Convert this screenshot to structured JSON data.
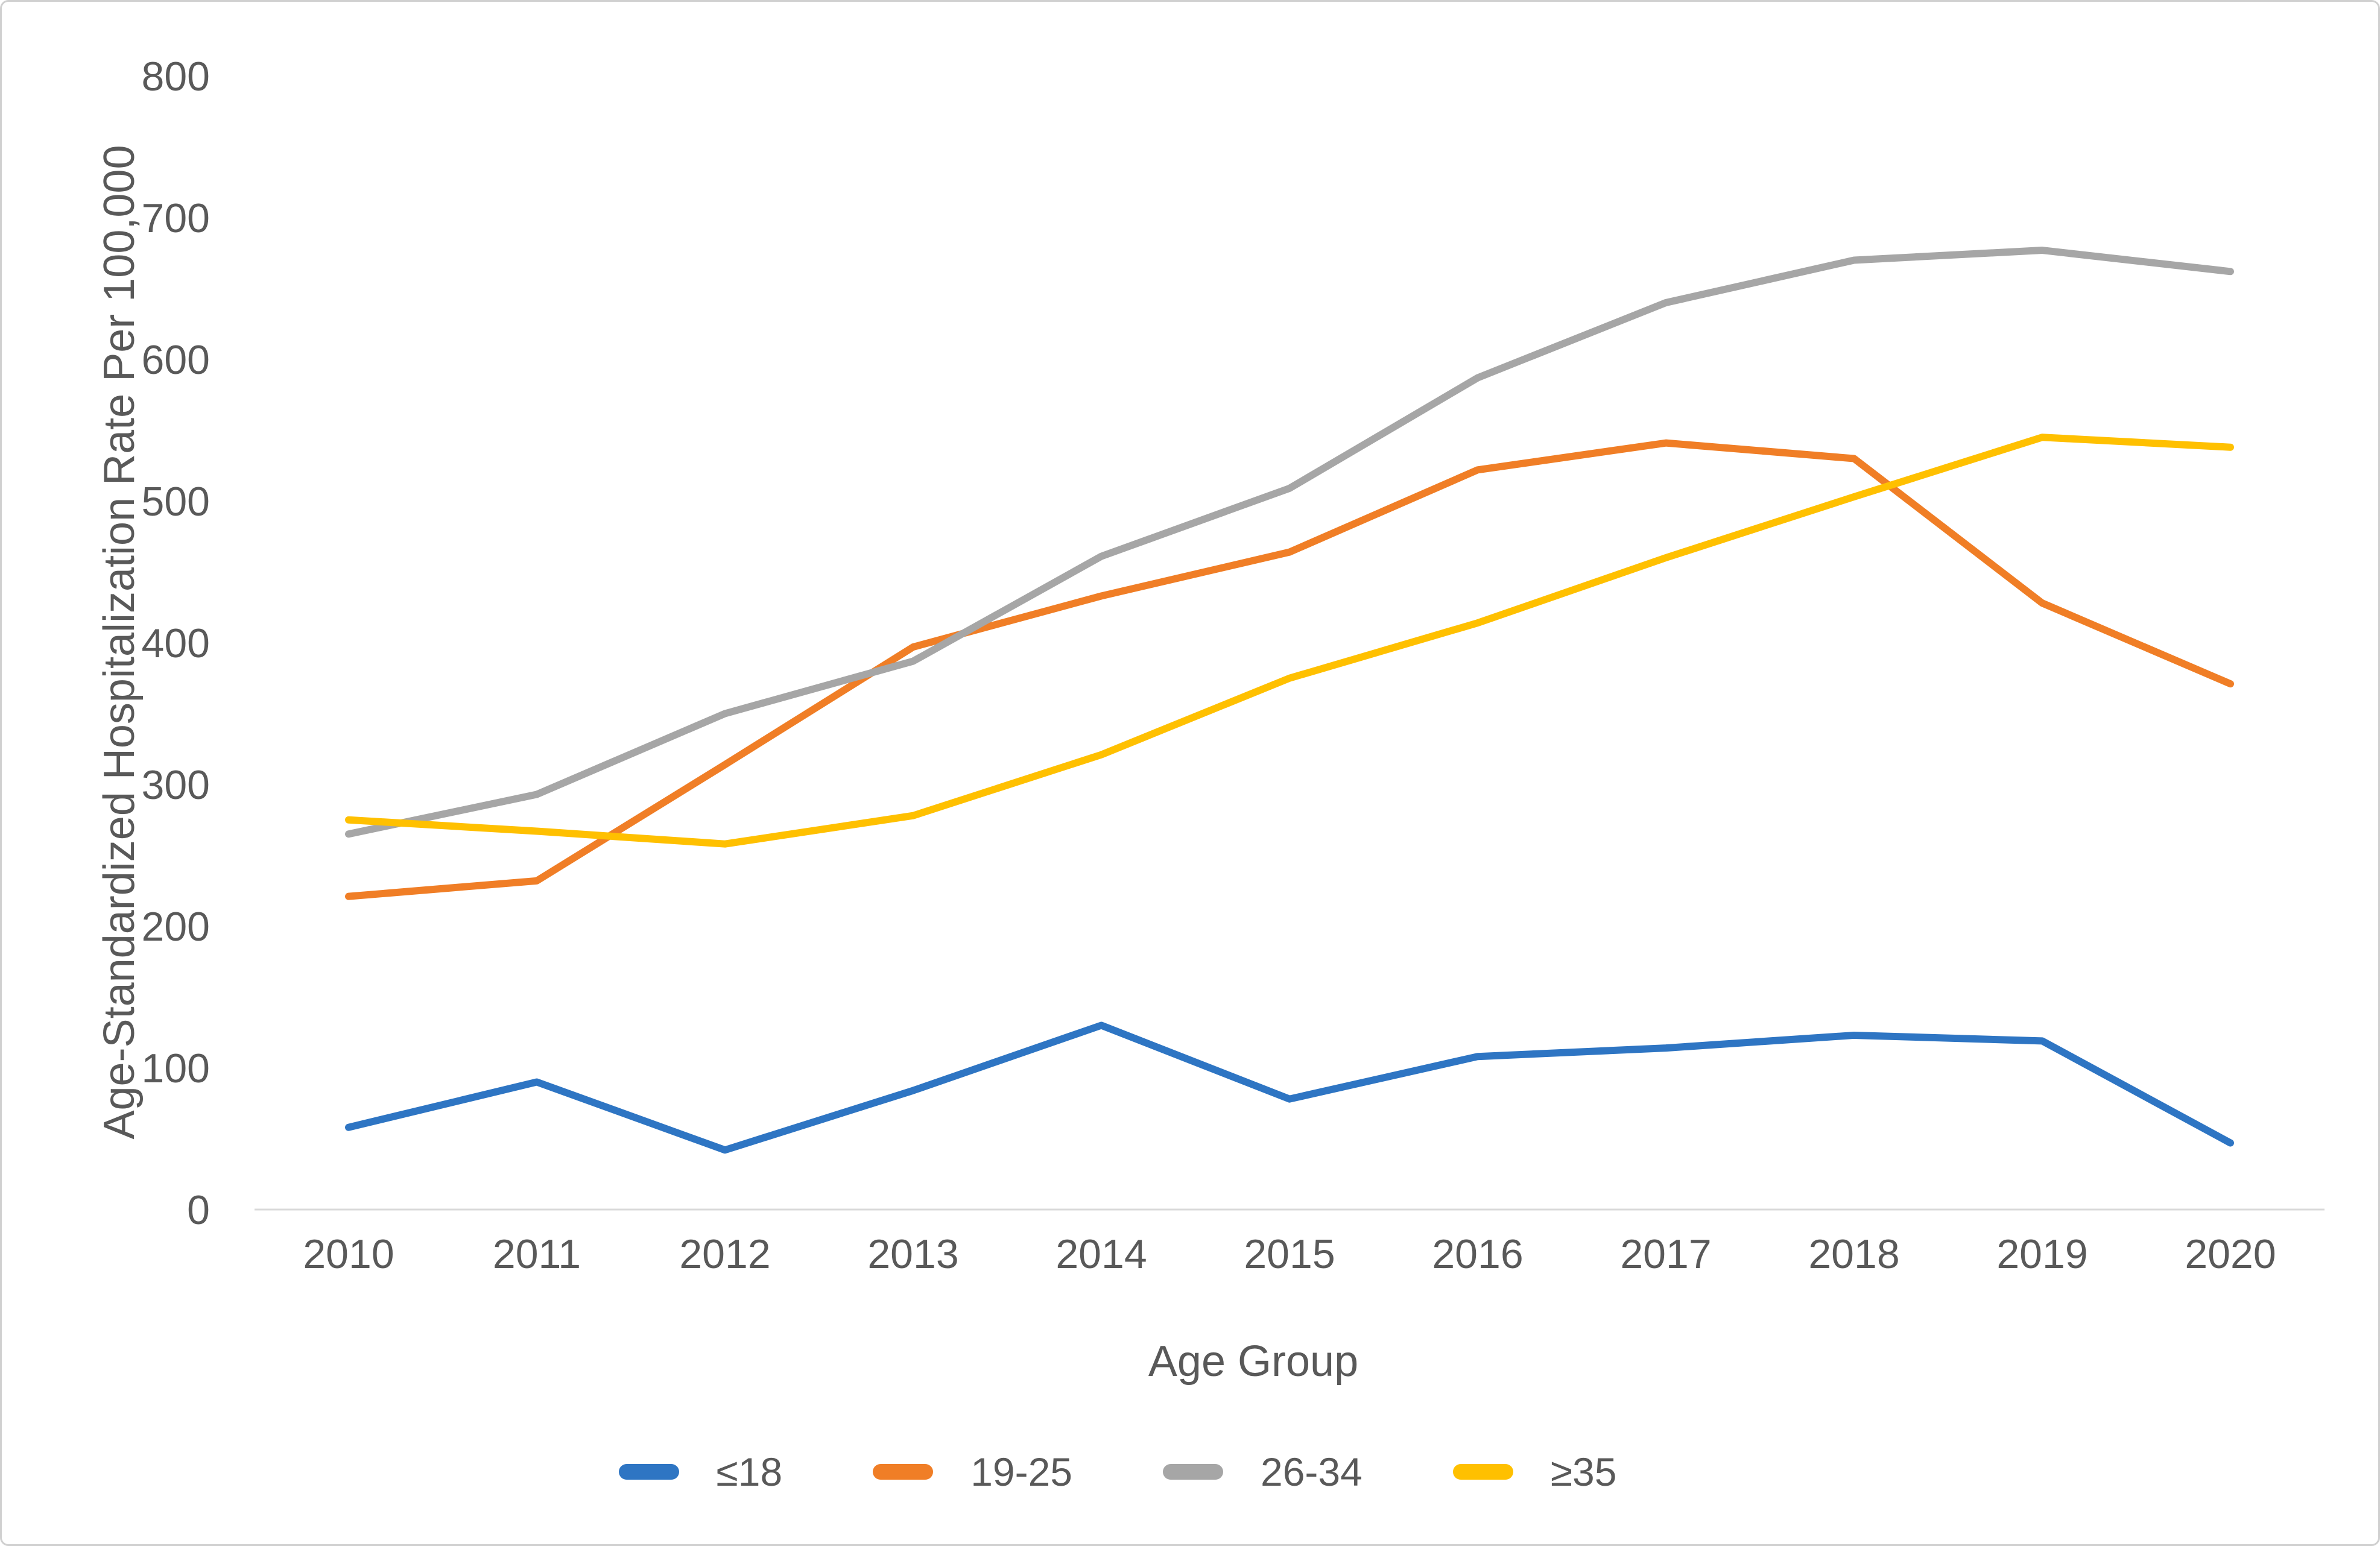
{
  "chart_data": {
    "type": "line",
    "title": "",
    "categories": [
      "2010",
      "2011",
      "2012",
      "2013",
      "2014",
      "2015",
      "2016",
      "2017",
      "2018",
      "2019",
      "2020"
    ],
    "xlabel": "Age Group",
    "ylabel": "Age-Standardized Hospitalization Rate Per 100,000",
    "ylim": [
      0,
      800
    ],
    "ytick_interval": 100,
    "yticks": [
      0,
      100,
      200,
      300,
      400,
      500,
      600,
      700,
      800
    ],
    "grid": false,
    "legend_position": "bottom",
    "axis_color": "#d9d9d9",
    "text_color": "#595959",
    "series": [
      {
        "name": "≤18",
        "color": "#2e75c3",
        "values": [
          58,
          90,
          42,
          84,
          130,
          78,
          108,
          114,
          123,
          119,
          47
        ]
      },
      {
        "name": "19-25",
        "color": "#f07e26",
        "values": [
          221,
          232,
          314,
          397,
          433,
          464,
          522,
          541,
          530,
          428,
          371
        ]
      },
      {
        "name": "26-34",
        "color": "#a6a6a6",
        "values": [
          265,
          293,
          350,
          387,
          461,
          509,
          587,
          640,
          670,
          677,
          662
        ]
      },
      {
        "name": "≥35",
        "color": "#ffc000",
        "values": [
          275,
          267,
          258,
          278,
          321,
          375,
          414,
          460,
          503,
          545,
          538
        ]
      }
    ]
  }
}
